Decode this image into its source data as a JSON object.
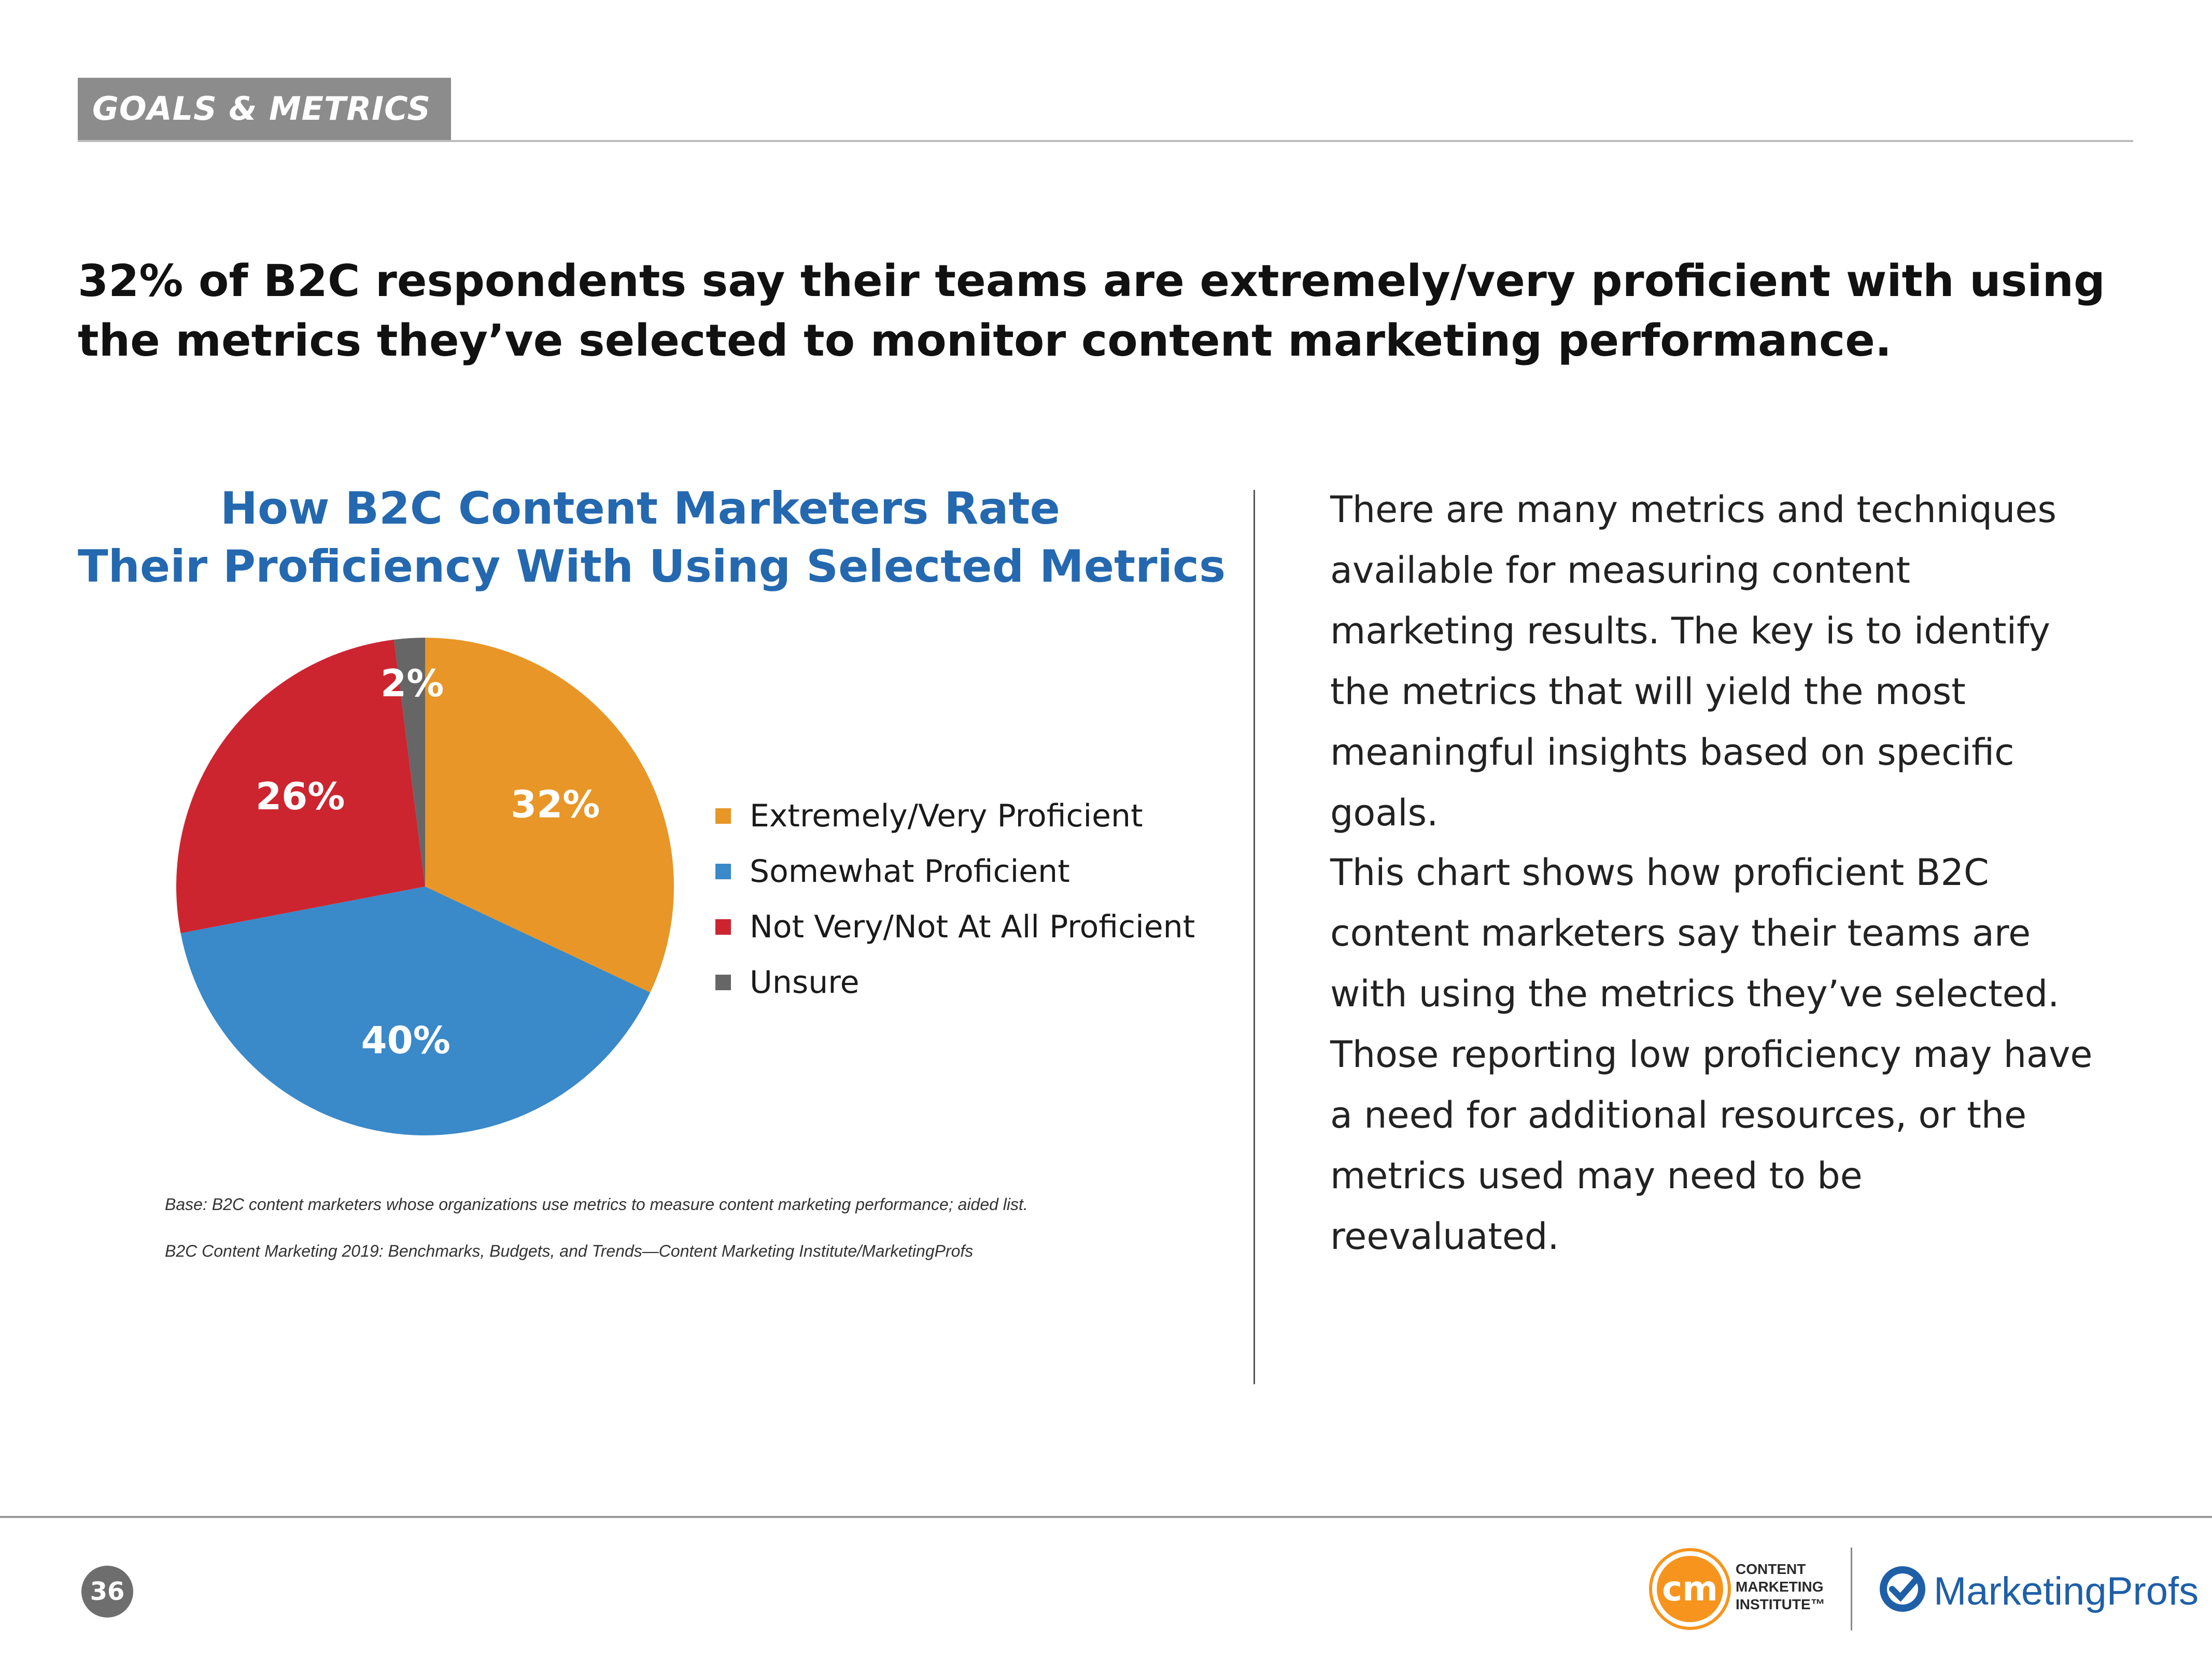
{
  "section_tag": "GOALS & METRICS",
  "headline": "32% of B2C respondents say their teams are extremely/very proficient with using the metrics they’ve selected to monitor content marketing performance.",
  "chart_data": {
    "type": "pie",
    "title": [
      "How B2C Content Marketers Rate",
      "Their Proficiency With Using Selected Metrics"
    ],
    "categories": [
      "Extremely/Very Proficient",
      "Somewhat Proficient",
      "Not Very/Not At All Proficient",
      "Unsure"
    ],
    "values": [
      32,
      40,
      26,
      2
    ],
    "labels": [
      "32%",
      "40%",
      "26%",
      "2%"
    ],
    "colors": [
      "#e89627",
      "#3a89c9",
      "#cc2530",
      "#666666"
    ],
    "legend_position": "right"
  },
  "footnotes": [
    "Base: B2C content marketers whose organizations use metrics to measure content marketing performance; aided list.",
    "B2C Content Marketing 2019: Benchmarks, Budgets, and Trends—Content Marketing Institute/MarketingProfs"
  ],
  "body_paragraphs": [
    "There are many metrics and techniques available for measuring content marketing results. The key is to identify the metrics that will yield the most meaningful insights based on specific goals.",
    "This chart shows how proficient B2C content marketers say their teams are with using the metrics they’ve selected. Those reporting low proficiency may have a need for additional resources, or the metrics used may need to be reevaluated."
  ],
  "page_number": "36",
  "logos": {
    "cmi_mark": "cm",
    "cmi_lines": [
      "CONTENT",
      "MARKETING",
      "INSTITUTE™"
    ],
    "marketingprofs": "MarketingProfs",
    "cmi_color": "#f7941d",
    "mp_color": "#1f5fa8"
  }
}
